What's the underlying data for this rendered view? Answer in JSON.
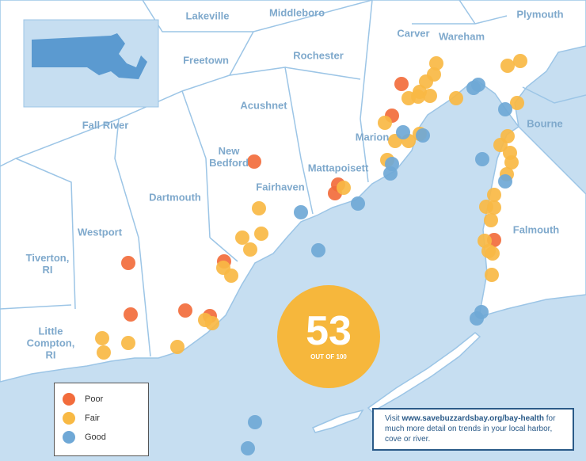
{
  "towns": [
    "Lakeville",
    "Middleboro",
    "Plymouth",
    "Carver",
    "Wareham",
    "Freetown",
    "Rochester",
    "Acushnet",
    "Fall River",
    "Bourne",
    "Marion",
    "New Bedford",
    "Mattapoisett",
    "Fairhaven",
    "Dartmouth",
    "Westport",
    "Falmouth",
    "Tiverton, RI",
    "Little Compton, RI"
  ],
  "legend": {
    "items": [
      "Poor",
      "Fair",
      "Good"
    ]
  },
  "score": {
    "value": 53,
    "caption": "OUT OF 100"
  },
  "note": {
    "prefix": "Visit",
    "url": "www.savebuzzardsbay.org/bay-health",
    "text": "for much more detail on trends in your local harbor, cove or river."
  }
}
